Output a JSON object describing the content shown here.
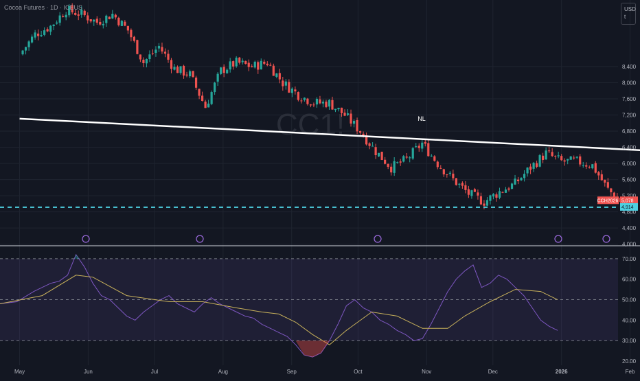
{
  "header": {
    "title": "Cocoa Futures · 1D · ICEUS",
    "currency": "USD",
    "currency_sub": "t"
  },
  "watermark": "CC1!",
  "colors": {
    "background": "#131722",
    "up": "#26a69a",
    "down": "#ef5350",
    "trendline": "#ffffff",
    "support": "#4dd0e1",
    "rsi_line": "#7e57c2",
    "rsi_ma": "#c9b25b",
    "rsi_band": "#7e57c2",
    "grid": "#1f2430",
    "axis_text": "#b2b5be"
  },
  "chart_data": [
    {
      "type": "candlestick",
      "title": "Cocoa Futures · 1D · ICEUS",
      "ylabel": "USD",
      "ylim": [
        3960,
        10050
      ],
      "y_ticks": [
        4000,
        4400,
        4800,
        5200,
        5600,
        6000,
        6400,
        6800,
        7200,
        7600,
        8000,
        8400
      ],
      "x_ticks": [
        "May",
        "Jun",
        "Jul",
        "Aug",
        "Sep",
        "Oct",
        "Nov",
        "Dec",
        "2026",
        "Feb"
      ],
      "close_path": [
        [
          "2025-05-01",
          8700
        ],
        [
          "2025-05-08",
          9200
        ],
        [
          "2025-05-15",
          9400
        ],
        [
          "2025-05-22",
          9800
        ],
        [
          "2025-05-29",
          9700
        ],
        [
          "2025-06-05",
          9500
        ],
        [
          "2025-06-12",
          9700
        ],
        [
          "2025-06-19",
          9300
        ],
        [
          "2025-06-26",
          8500
        ],
        [
          "2025-07-03",
          8900
        ],
        [
          "2025-07-10",
          8350
        ],
        [
          "2025-07-17",
          8200
        ],
        [
          "2025-07-24",
          7400
        ],
        [
          "2025-07-31",
          8300
        ],
        [
          "2025-08-07",
          8500
        ],
        [
          "2025-08-14",
          8400
        ],
        [
          "2025-08-21",
          8500
        ],
        [
          "2025-08-28",
          8000
        ],
        [
          "2025-09-04",
          7700
        ],
        [
          "2025-09-11",
          7500
        ],
        [
          "2025-09-18",
          7500
        ],
        [
          "2025-09-25",
          7200
        ],
        [
          "2025-10-02",
          6800
        ],
        [
          "2025-10-09",
          6300
        ],
        [
          "2025-10-16",
          5900
        ],
        [
          "2025-10-23",
          6100
        ],
        [
          "2025-10-30",
          6500
        ],
        [
          "2025-11-06",
          6000
        ],
        [
          "2025-11-13",
          5600
        ],
        [
          "2025-11-20",
          5250
        ],
        [
          "2025-11-27",
          5050
        ],
        [
          "2025-12-04",
          5300
        ],
        [
          "2025-12-11",
          5500
        ],
        [
          "2025-12-18",
          5900
        ],
        [
          "2025-12-25",
          6250
        ],
        [
          "2026-01-01",
          6050
        ],
        [
          "2026-01-08",
          6050
        ],
        [
          "2026-01-15",
          5950
        ],
        [
          "2026-01-22",
          5350
        ],
        [
          "2026-01-29",
          5000
        ]
      ],
      "last_price": {
        "label": "CCH2026",
        "value": "5,078"
      },
      "support_level": {
        "value": 4914,
        "label": "4,914"
      },
      "trendline": {
        "label": "NL",
        "start": [
          "2025-05-01",
          7110
        ],
        "end": [
          "2026-02-12",
          6310
        ]
      }
    },
    {
      "type": "line",
      "title": "",
      "ylim": [
        18,
        75
      ],
      "y_ticks": [
        20,
        30,
        40,
        50,
        60,
        70
      ],
      "band": [
        30,
        70
      ],
      "midline": 50,
      "series": [
        {
          "values": [
            [
              0,
              48
            ],
            [
              4,
              49
            ],
            [
              8,
              54
            ],
            [
              12,
              58
            ],
            [
              14,
              59
            ],
            [
              16,
              62
            ],
            [
              18,
              72
            ],
            [
              20,
              66
            ],
            [
              22,
              58
            ],
            [
              24,
              52
            ],
            [
              26,
              50
            ],
            [
              28,
              46
            ],
            [
              30,
              42
            ],
            [
              32,
              40
            ],
            [
              34,
              44
            ],
            [
              36,
              47
            ],
            [
              38,
              50
            ],
            [
              40,
              52
            ],
            [
              42,
              48
            ],
            [
              44,
              46
            ],
            [
              46,
              44
            ],
            [
              48,
              48
            ],
            [
              50,
              51
            ],
            [
              52,
              48
            ],
            [
              54,
              46
            ],
            [
              56,
              44
            ],
            [
              58,
              42
            ],
            [
              60,
              41
            ],
            [
              62,
              38
            ],
            [
              64,
              36
            ],
            [
              66,
              34
            ],
            [
              68,
              32
            ],
            [
              70,
              28
            ],
            [
              72,
              23
            ],
            [
              74,
              22
            ],
            [
              76,
              24
            ],
            [
              78,
              30
            ],
            [
              80,
              38
            ],
            [
              82,
              47
            ],
            [
              84,
              50
            ],
            [
              86,
              46
            ],
            [
              88,
              44
            ],
            [
              90,
              40
            ],
            [
              92,
              38
            ],
            [
              94,
              35
            ],
            [
              96,
              33
            ],
            [
              98,
              30
            ],
            [
              100,
              31
            ],
            [
              102,
              38
            ],
            [
              104,
              46
            ],
            [
              106,
              54
            ],
            [
              108,
              60
            ],
            [
              110,
              64
            ],
            [
              112,
              67
            ],
            [
              114,
              56
            ],
            [
              116,
              58
            ],
            [
              118,
              62
            ],
            [
              120,
              60
            ],
            [
              122,
              56
            ],
            [
              124,
              52
            ],
            [
              126,
              46
            ],
            [
              128,
              40
            ],
            [
              130,
              37
            ],
            [
              132,
              35
            ]
          ]
        },
        {
          "values": [
            [
              0,
              48
            ],
            [
              10,
              52
            ],
            [
              18,
              62
            ],
            [
              22,
              61
            ],
            [
              30,
              52
            ],
            [
              40,
              49
            ],
            [
              48,
              49
            ],
            [
              56,
              46
            ],
            [
              62,
              44
            ],
            [
              66,
              43
            ],
            [
              70,
              39
            ],
            [
              74,
              33
            ],
            [
              78,
              28
            ],
            [
              82,
              35
            ],
            [
              88,
              44
            ],
            [
              94,
              42
            ],
            [
              100,
              36
            ],
            [
              106,
              36
            ],
            [
              110,
              42
            ],
            [
              116,
              49
            ],
            [
              122,
              55
            ],
            [
              128,
              54
            ],
            [
              132,
              50
            ]
          ]
        }
      ]
    }
  ]
}
